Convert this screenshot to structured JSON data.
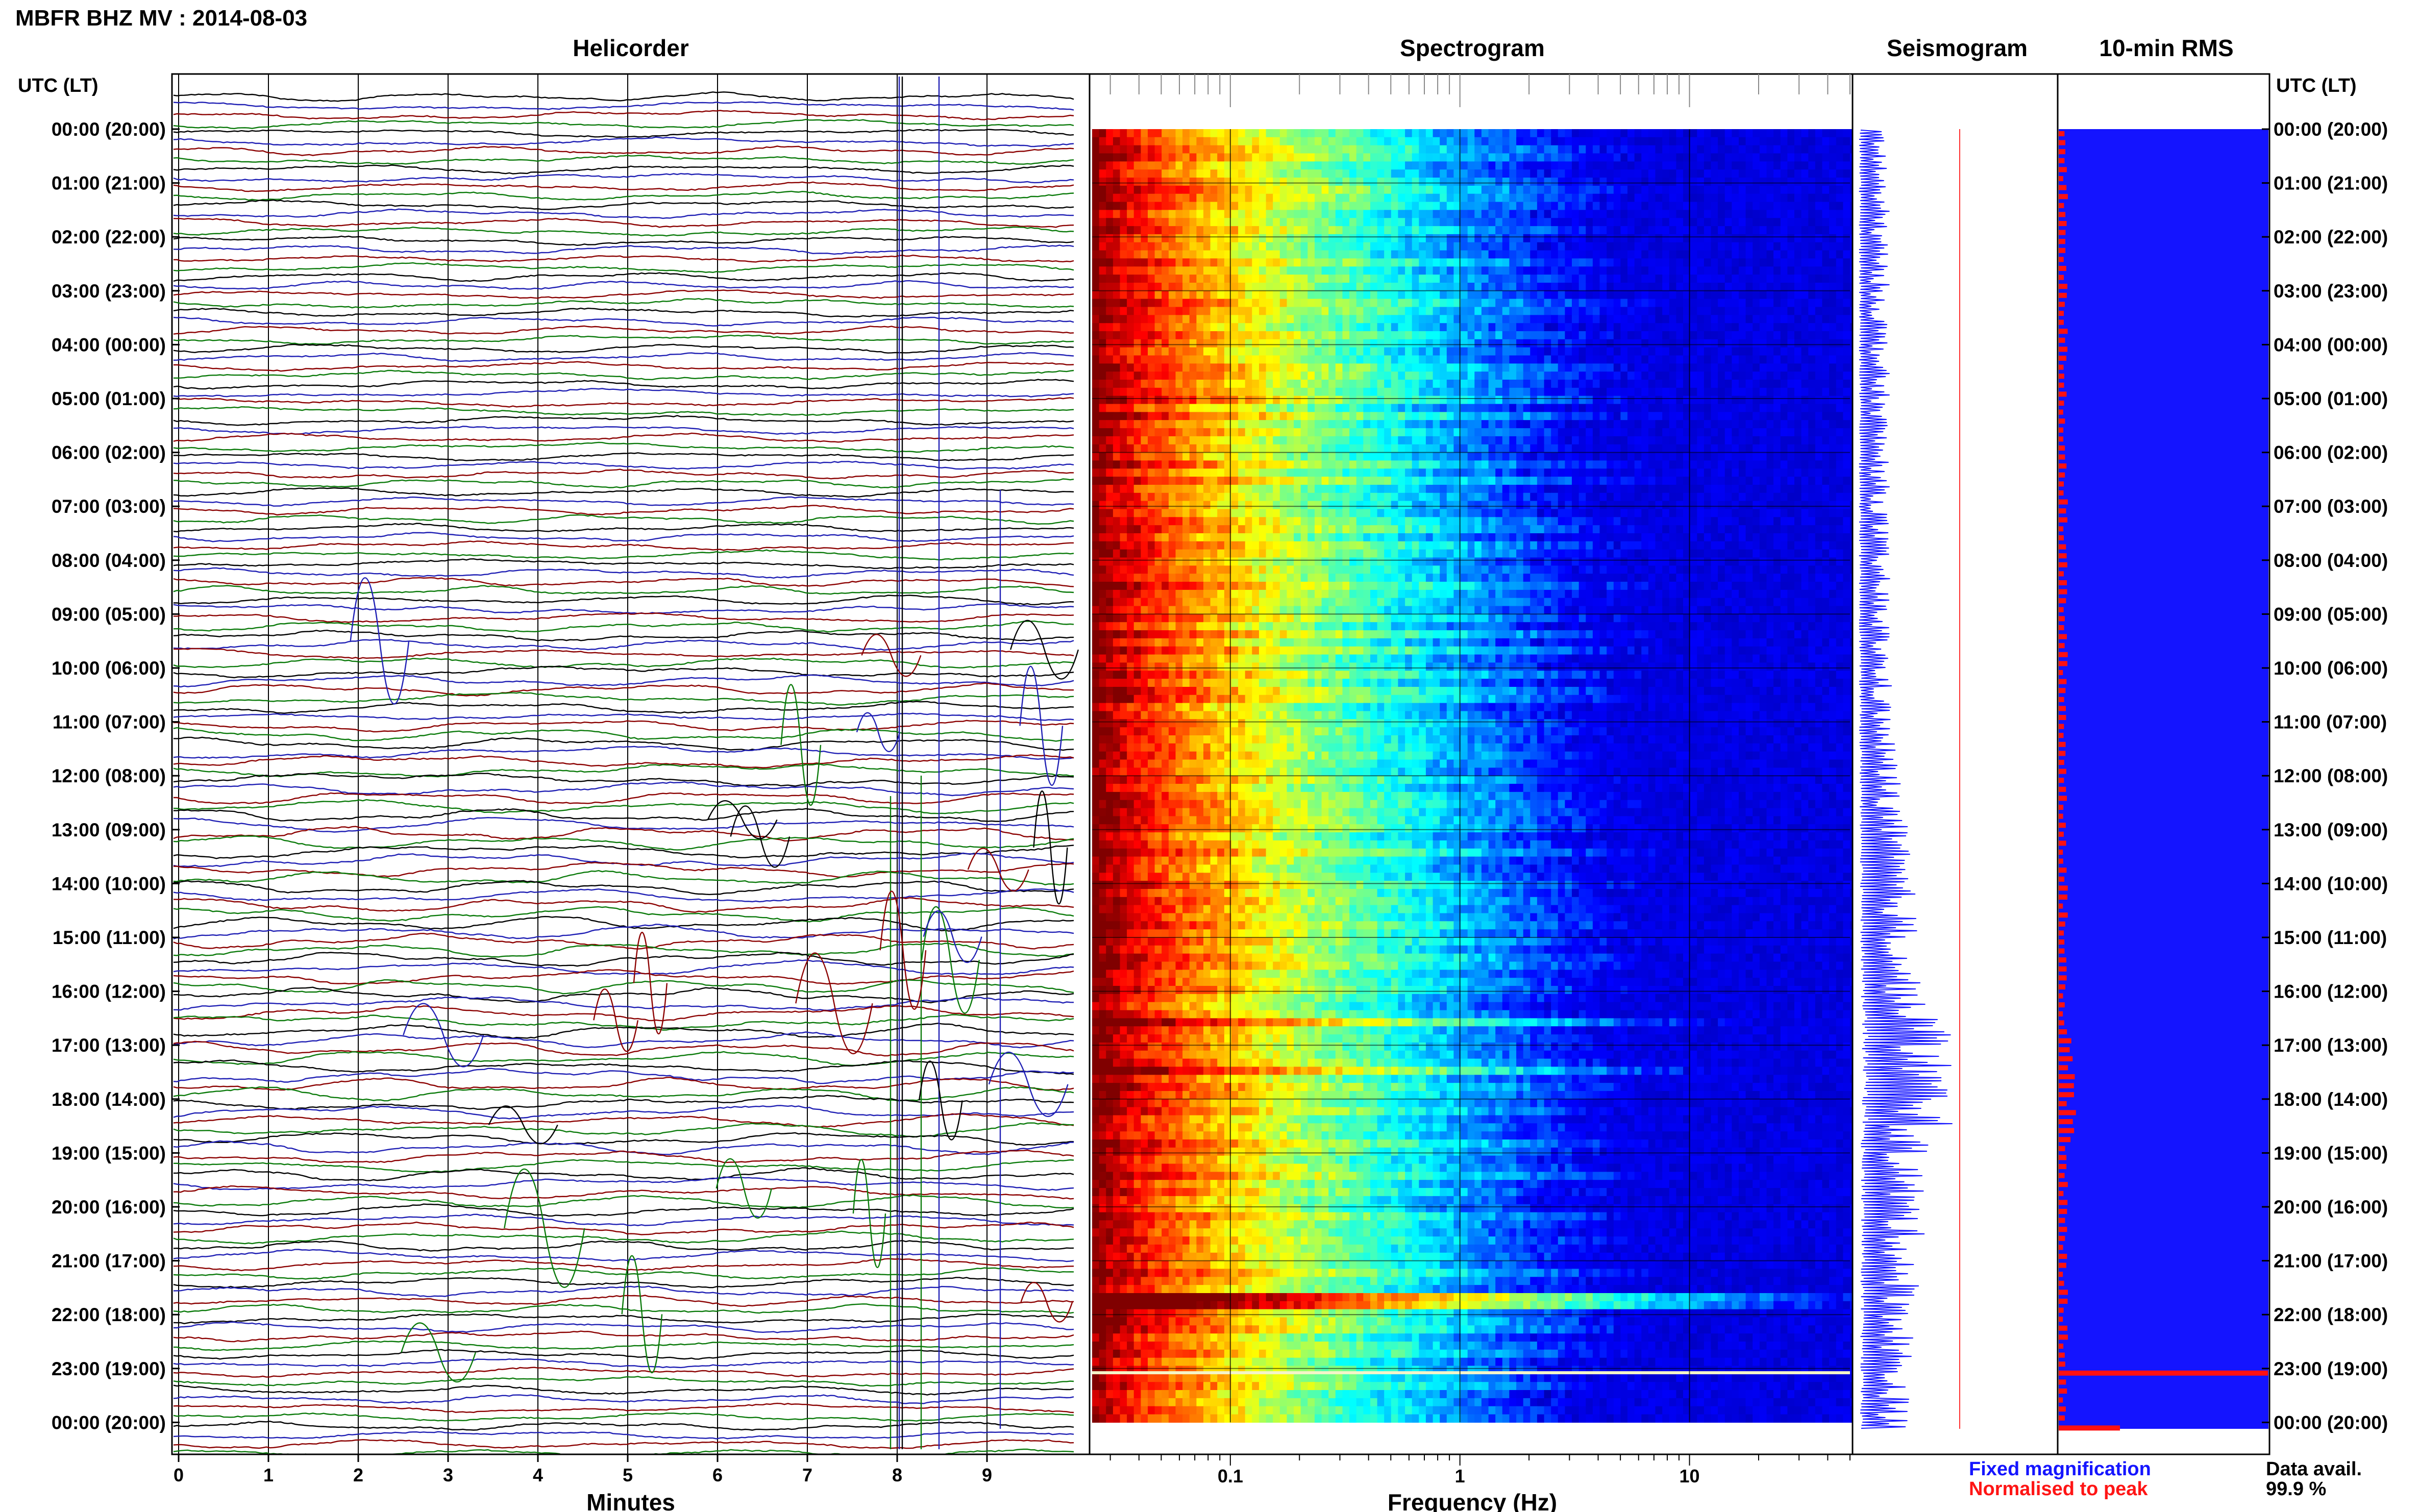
{
  "header": {
    "station": "MBFR BHZ MV : 2014-08-03",
    "left_axis_label": "UTC (LT)",
    "right_axis_label": "UTC (LT)"
  },
  "panels": {
    "helicorder": "Helicorder",
    "spectrogram": "Spectrogram",
    "seismogram": "Seismogram",
    "rms": "10-min RMS"
  },
  "time_labels": [
    "00:00 (20:00)",
    "01:00 (21:00)",
    "02:00 (22:00)",
    "03:00 (23:00)",
    "04:00 (00:00)",
    "05:00 (01:00)",
    "06:00 (02:00)",
    "07:00 (03:00)",
    "08:00 (04:00)",
    "09:00 (05:00)",
    "10:00 (06:00)",
    "11:00 (07:00)",
    "12:00 (08:00)",
    "13:00 (09:00)",
    "14:00 (10:00)",
    "15:00 (11:00)",
    "16:00 (12:00)",
    "17:00 (13:00)",
    "18:00 (14:00)",
    "19:00 (15:00)",
    "20:00 (16:00)",
    "21:00 (17:00)",
    "22:00 (18:00)",
    "23:00 (19:00)",
    "00:00 (20:00)"
  ],
  "helicorder": {
    "xlabel": "Minutes",
    "xticks": [
      "0",
      "1",
      "2",
      "3",
      "4",
      "5",
      "6",
      "7",
      "8",
      "9"
    ],
    "trace_colors": [
      "#000000",
      "#1f1fb4",
      "#8b0000",
      "#0a7a0a"
    ]
  },
  "spectrogram": {
    "xlabel": "Frequency (Hz)",
    "xticks": [
      "0.1",
      "1",
      "10"
    ],
    "freq_range_hz": [
      0.025,
      50
    ],
    "scale": "log"
  },
  "legend": {
    "fixed": "Fixed magnification",
    "fixed_color": "#1515ff",
    "normalised": "Normalised to peak",
    "normalised_color": "#ff1515",
    "availability_label": "Data avail.",
    "availability_value": "99.9 %"
  },
  "chart_data": [
    {
      "type": "line",
      "title": "Helicorder",
      "xlabel": "Minutes",
      "xlim": [
        0,
        10
      ],
      "xticks": [
        0,
        1,
        2,
        3,
        4,
        5,
        6,
        7,
        8,
        9
      ],
      "rows": "10-minute traces, 6 per hour, 00:00 to 00:00 UTC",
      "series_colors": [
        "black",
        "blue",
        "dark red",
        "green"
      ]
    },
    {
      "type": "heatmap",
      "title": "Spectrogram",
      "xlabel": "Frequency (Hz)",
      "xscale": "log",
      "xlim": [
        0.025,
        50
      ],
      "xticks": [
        0.1,
        1,
        10
      ],
      "ylabel": "UTC (LT)",
      "colormap": "jet"
    },
    {
      "type": "line",
      "title": "Seismogram",
      "series": [
        {
          "name": "Fixed magnification",
          "color": "#1515ff"
        },
        {
          "name": "Normalised to peak",
          "color": "#ff1515"
        }
      ]
    },
    {
      "type": "bar",
      "title": "10-min RMS",
      "note": "largest values near 23:00 (19:00) and 00:00 (20:00)"
    }
  ]
}
